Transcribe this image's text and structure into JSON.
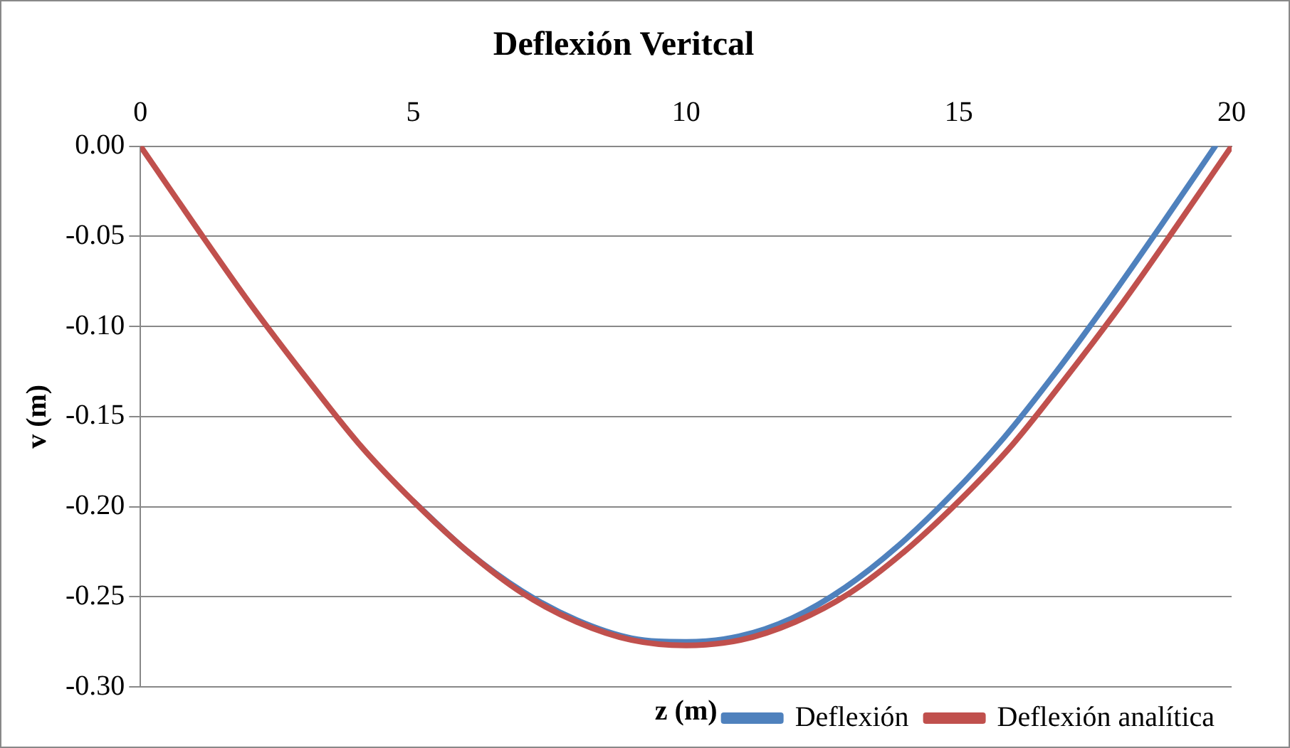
{
  "chart_data": {
    "type": "line",
    "title": "Deflexión Veritcal",
    "xlabel": "z (m)",
    "ylabel": "v (m)",
    "xlim": [
      0,
      20
    ],
    "xticks": [
      0,
      5,
      10,
      15,
      20
    ],
    "ylim": [
      -0.3,
      0
    ],
    "yticks": [
      {
        "value": 0,
        "label": "0.00"
      },
      {
        "value": -0.05,
        "label": "-0.05"
      },
      {
        "value": -0.1,
        "label": "-0.10"
      },
      {
        "value": -0.15,
        "label": "-0.15"
      },
      {
        "value": -0.2,
        "label": "-0.20"
      },
      {
        "value": -0.25,
        "label": "-0.25"
      },
      {
        "value": -0.3,
        "label": "-0.30"
      }
    ],
    "grid": "y",
    "legend": "bottom right",
    "marker": "none",
    "line_style": "solid",
    "series": [
      {
        "name": "Deflexión",
        "color": "#4f81bd",
        "x": [
          5,
          6,
          7,
          8,
          9,
          10,
          10.97,
          11.94,
          12.91,
          13.88,
          14.85,
          15.82,
          16.79,
          17.76,
          18.73,
          19.7
        ],
        "values": [
          -0.197,
          -0.225,
          -0.247,
          -0.263,
          -0.273,
          -0.275,
          -0.272,
          -0.262,
          -0.245,
          -0.222,
          -0.194,
          -0.162,
          -0.125,
          -0.085,
          -0.043,
          0
        ]
      },
      {
        "name": "Deflexión analítica",
        "color": "#c0504d",
        "x": [
          0,
          1,
          2,
          3,
          4,
          5,
          6,
          7,
          8,
          9,
          10,
          11,
          12,
          13,
          14,
          15,
          16,
          17,
          18,
          19,
          20
        ],
        "values": [
          0,
          -0.044,
          -0.087,
          -0.127,
          -0.165,
          -0.197,
          -0.225,
          -0.248,
          -0.264,
          -0.274,
          -0.277,
          -0.274,
          -0.264,
          -0.248,
          -0.225,
          -0.197,
          -0.165,
          -0.127,
          -0.087,
          -0.044,
          0
        ]
      }
    ]
  }
}
